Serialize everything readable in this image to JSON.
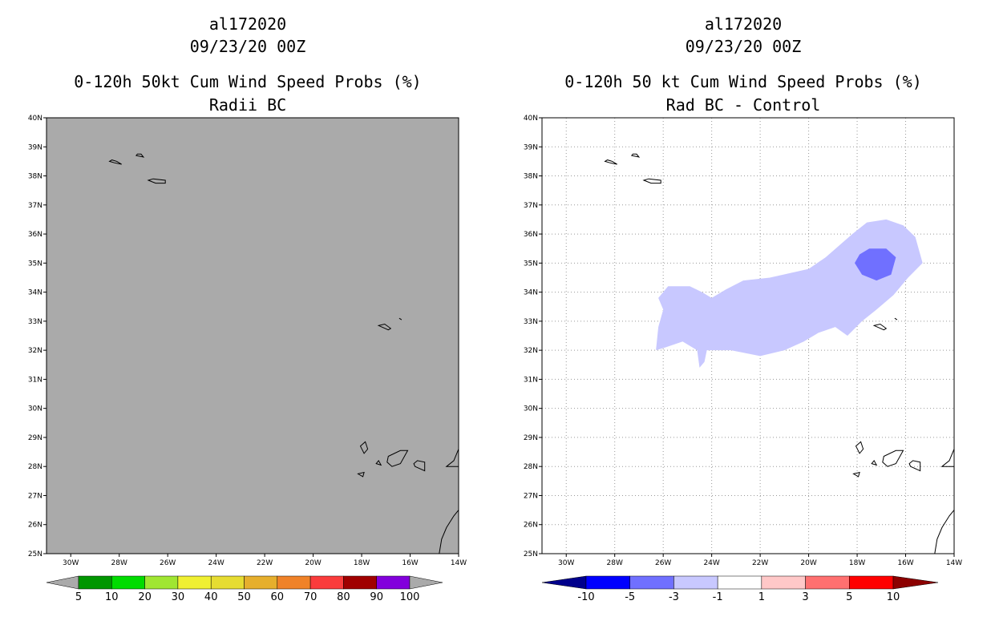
{
  "left": {
    "title_storm": "al172020",
    "title_date": "09/23/20 00Z",
    "title_product": "0-120h 50kt Cum Wind Speed Probs (%)",
    "title_subtitle": "Radii BC",
    "lat_labels": [
      "40N",
      "39N",
      "38N",
      "37N",
      "36N",
      "35N",
      "34N",
      "33N",
      "32N",
      "31N",
      "30N",
      "29N",
      "28N",
      "27N",
      "26N",
      "25N"
    ],
    "lon_labels": [
      "30W",
      "28W",
      "26W",
      "24W",
      "22W",
      "20W",
      "18W",
      "16W",
      "14W"
    ],
    "colorbar": {
      "labels": [
        "5",
        "10",
        "20",
        "30",
        "40",
        "50",
        "60",
        "70",
        "80",
        "90",
        "100"
      ],
      "colors": [
        "#009600",
        "#00dc00",
        "#a0e632",
        "#f0f032",
        "#e6dc32",
        "#e6af2d",
        "#f08228",
        "#fa3c3c",
        "#a00000",
        "#8200dc",
        "#aaaaaa"
      ]
    },
    "background_color": "#aaaaaa"
  },
  "right": {
    "title_storm": "al172020",
    "title_date": "09/23/20 00Z",
    "title_product": "0-120h 50 kt Cum Wind Speed Probs (%)",
    "title_subtitle": "Rad BC - Control",
    "lat_labels": [
      "40N",
      "39N",
      "38N",
      "37N",
      "36N",
      "35N",
      "34N",
      "33N",
      "32N",
      "31N",
      "30N",
      "29N",
      "28N",
      "27N",
      "26N",
      "25N"
    ],
    "lon_labels": [
      "30W",
      "28W",
      "26W",
      "24W",
      "22W",
      "20W",
      "18W",
      "16W",
      "14W"
    ],
    "colorbar": {
      "labels": [
        "-10",
        "-5",
        "-3",
        "-1",
        "1",
        "3",
        "5",
        "10"
      ],
      "colors": [
        "#00008c",
        "#0000ff",
        "#7070ff",
        "#c8c8ff",
        "#ffffff",
        "#ffc8c8",
        "#ff7070",
        "#ff0000",
        "#8c0000"
      ]
    },
    "shading_colors": {
      "light": "#c8c8ff",
      "medium": "#7070ff"
    }
  }
}
